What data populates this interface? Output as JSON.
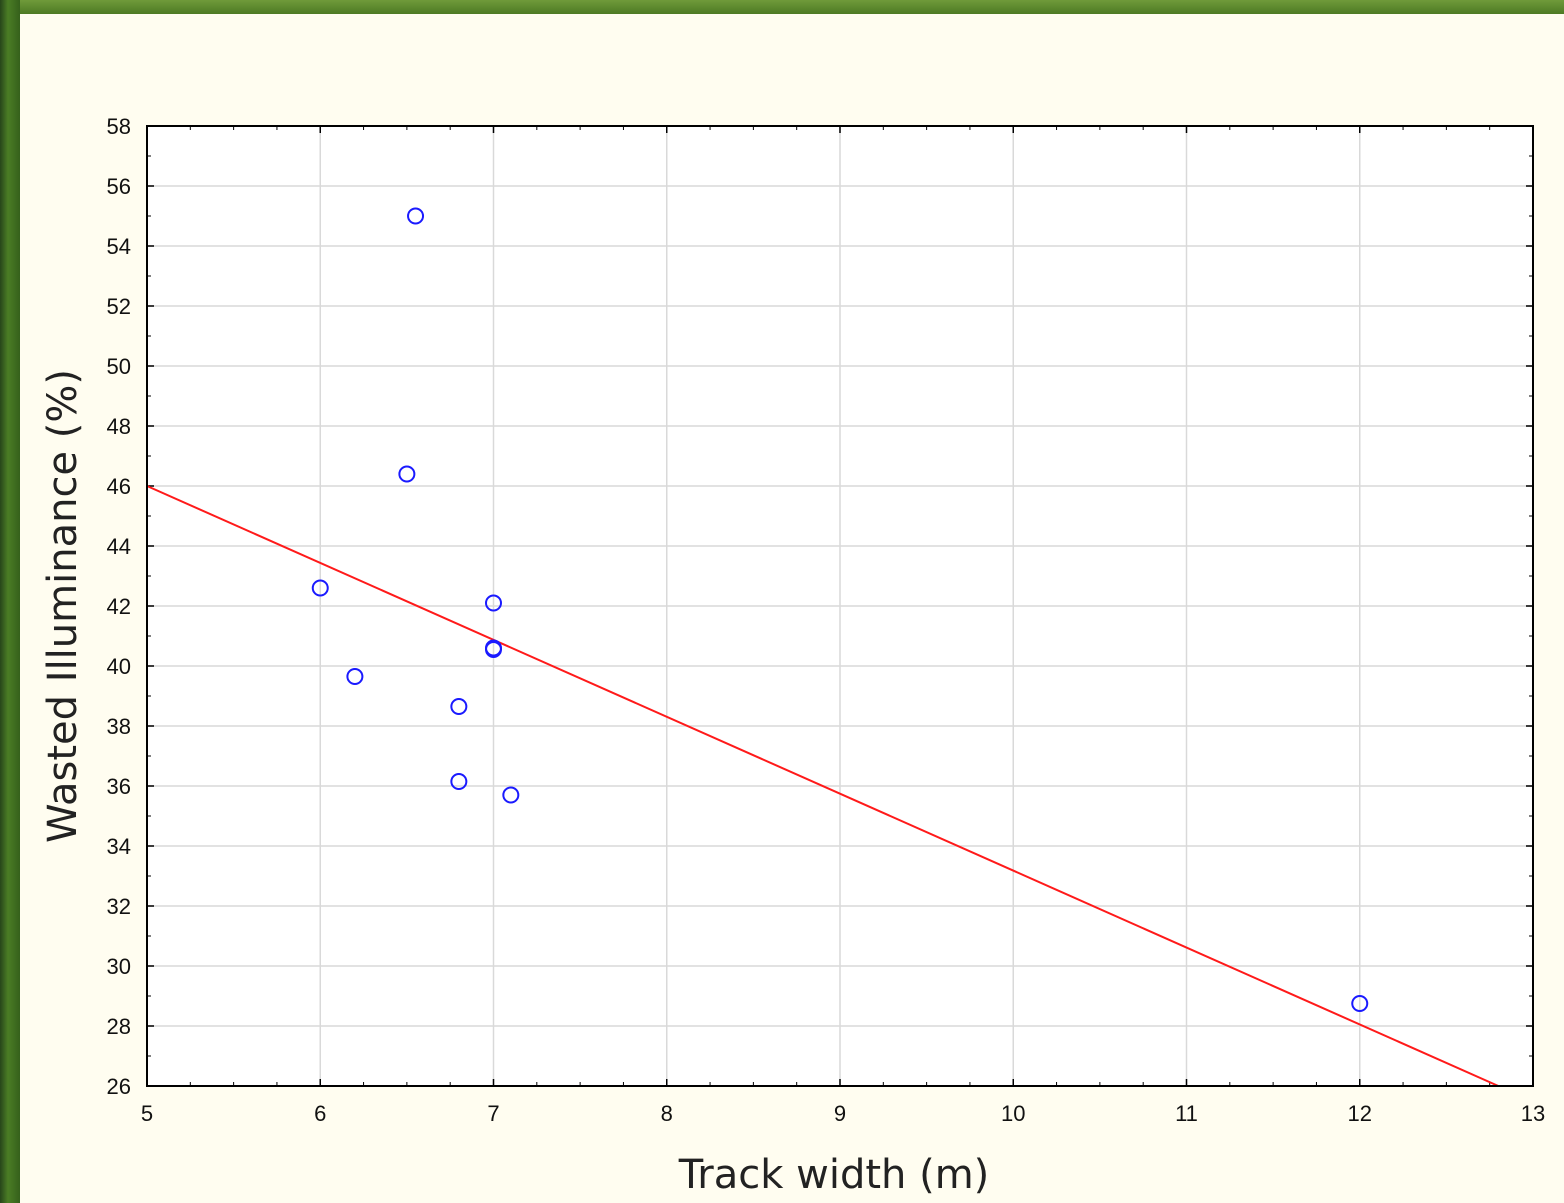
{
  "chart_data": {
    "type": "scatter",
    "xlabel": "Track width (m)",
    "ylabel": "Wasted Illuminance (%)",
    "xlim": [
      5,
      13
    ],
    "ylim": [
      26,
      58
    ],
    "xticks": [
      5,
      6,
      7,
      8,
      9,
      10,
      11,
      12,
      13
    ],
    "yticks": [
      26,
      28,
      30,
      32,
      34,
      36,
      38,
      40,
      42,
      44,
      46,
      48,
      50,
      52,
      54,
      56,
      58
    ],
    "grid": true,
    "points": [
      {
        "x": 6.55,
        "y": 55.0
      },
      {
        "x": 6.5,
        "y": 46.4
      },
      {
        "x": 6.0,
        "y": 42.6
      },
      {
        "x": 7.0,
        "y": 42.1
      },
      {
        "x": 7.0,
        "y": 40.6
      },
      {
        "x": 7.0,
        "y": 40.55
      },
      {
        "x": 6.2,
        "y": 39.65
      },
      {
        "x": 6.8,
        "y": 38.65
      },
      {
        "x": 6.8,
        "y": 36.15
      },
      {
        "x": 7.1,
        "y": 35.7
      },
      {
        "x": 12.0,
        "y": 28.75
      }
    ],
    "fit_line": {
      "x": [
        5,
        12.8
      ],
      "y": [
        46.0,
        26.0
      ]
    },
    "colors": {
      "points": "#1a1aff",
      "fit_line": "#ff1a1a",
      "grid": "#d9d9d9"
    }
  }
}
